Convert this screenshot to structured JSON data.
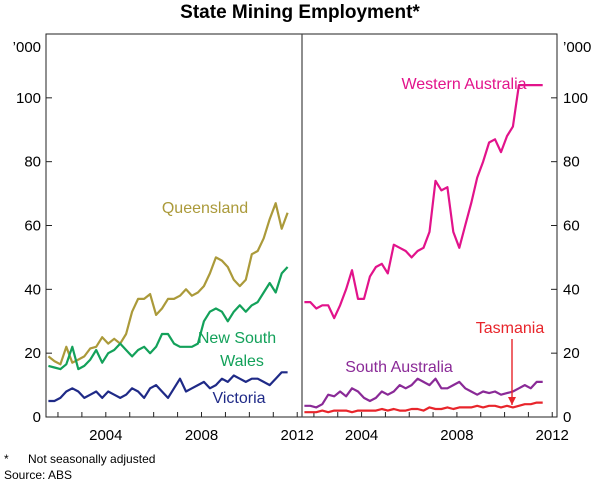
{
  "title": "State Mining Employment*",
  "footnote": {
    "marker": "*",
    "text": "Not seasonally adjusted"
  },
  "source": "Source: ABS",
  "chart_data": [
    {
      "type": "line",
      "panel": "left",
      "y_unit": "’000",
      "ylim": [
        0,
        120
      ],
      "yticks": [
        0,
        20,
        40,
        60,
        80,
        100
      ],
      "xlim": [
        2001.5,
        2012.2
      ],
      "xticks": [
        2004,
        2008,
        2012
      ],
      "grid": false,
      "series": [
        {
          "name": "Queensland",
          "label_lines": [
            "Queensland"
          ],
          "color": "#ab9a3a",
          "x": [
            2001.6,
            2001.85,
            2002.1,
            2002.35,
            2002.6,
            2002.85,
            2003.1,
            2003.35,
            2003.6,
            2003.85,
            2004.1,
            2004.35,
            2004.6,
            2004.85,
            2005.1,
            2005.35,
            2005.6,
            2005.85,
            2006.1,
            2006.35,
            2006.6,
            2006.85,
            2007.1,
            2007.35,
            2007.6,
            2007.85,
            2008.1,
            2008.35,
            2008.6,
            2008.85,
            2009.1,
            2009.35,
            2009.6,
            2009.85,
            2010.1,
            2010.35,
            2010.6,
            2010.85,
            2011.1,
            2011.35,
            2011.6
          ],
          "values": [
            19,
            17.5,
            16.5,
            22,
            17,
            18,
            19,
            21.5,
            22,
            25,
            23,
            24.5,
            23,
            26,
            33,
            37,
            37,
            38.5,
            32,
            34,
            37,
            37,
            38,
            40,
            38,
            39,
            41,
            45,
            50,
            49,
            47,
            43,
            41,
            43,
            51,
            52,
            56,
            62,
            67,
            59,
            64
          ]
        },
        {
          "name": "New South Wales",
          "label_lines": [
            "New South",
            "Wales"
          ],
          "color": "#13a15a",
          "x": [
            2001.6,
            2001.85,
            2002.1,
            2002.35,
            2002.6,
            2002.85,
            2003.1,
            2003.35,
            2003.6,
            2003.85,
            2004.1,
            2004.35,
            2004.6,
            2004.85,
            2005.1,
            2005.35,
            2005.6,
            2005.85,
            2006.1,
            2006.35,
            2006.6,
            2006.85,
            2007.1,
            2007.35,
            2007.6,
            2007.85,
            2008.1,
            2008.35,
            2008.6,
            2008.85,
            2009.1,
            2009.35,
            2009.6,
            2009.85,
            2010.1,
            2010.35,
            2010.6,
            2010.85,
            2011.1,
            2011.35,
            2011.6
          ],
          "values": [
            16,
            15.5,
            15,
            16.5,
            22,
            15,
            16,
            18,
            21,
            17,
            20,
            21,
            23,
            21,
            19,
            21,
            22,
            20,
            22,
            26,
            26,
            23,
            22,
            22,
            22,
            23,
            30,
            33,
            34,
            33,
            30,
            33,
            35,
            33,
            35,
            36,
            39,
            42,
            39,
            45,
            47
          ]
        },
        {
          "name": "Victoria",
          "label_lines": [
            "Victoria"
          ],
          "color": "#1f2a87",
          "x": [
            2001.6,
            2001.85,
            2002.1,
            2002.35,
            2002.6,
            2002.85,
            2003.1,
            2003.35,
            2003.6,
            2003.85,
            2004.1,
            2004.35,
            2004.6,
            2004.85,
            2005.1,
            2005.35,
            2005.6,
            2005.85,
            2006.1,
            2006.35,
            2006.6,
            2006.85,
            2007.1,
            2007.35,
            2007.6,
            2007.85,
            2008.1,
            2008.35,
            2008.6,
            2008.85,
            2009.1,
            2009.35,
            2009.6,
            2009.85,
            2010.1,
            2010.35,
            2010.6,
            2010.85,
            2011.1,
            2011.35,
            2011.6
          ],
          "values": [
            5,
            5,
            6,
            8,
            9,
            8,
            6,
            7,
            8,
            6,
            8,
            7,
            6,
            7,
            9,
            8,
            6,
            9,
            10,
            8,
            6,
            9,
            12,
            8,
            9,
            10,
            11,
            9,
            10,
            12,
            11,
            13,
            12,
            11,
            12,
            12,
            11,
            10,
            12,
            14,
            14
          ]
        }
      ]
    },
    {
      "type": "line",
      "panel": "right",
      "y_unit": "’000",
      "ylim": [
        0,
        120
      ],
      "yticks": [
        0,
        20,
        40,
        60,
        80,
        100
      ],
      "xlim": [
        2001.5,
        2012.2
      ],
      "xticks": [
        2004,
        2008,
        2012
      ],
      "grid": false,
      "series": [
        {
          "name": "Western Australia",
          "label_lines": [
            "Western Australia"
          ],
          "color": "#e2138b",
          "x": [
            2001.6,
            2001.85,
            2002.1,
            2002.35,
            2002.6,
            2002.85,
            2003.1,
            2003.35,
            2003.6,
            2003.85,
            2004.1,
            2004.35,
            2004.6,
            2004.85,
            2005.1,
            2005.35,
            2005.6,
            2005.85,
            2006.1,
            2006.35,
            2006.6,
            2006.85,
            2007.1,
            2007.35,
            2007.6,
            2007.85,
            2008.1,
            2008.35,
            2008.6,
            2008.85,
            2009.1,
            2009.35,
            2009.6,
            2009.85,
            2010.1,
            2010.35,
            2010.6,
            2010.85,
            2011.1,
            2011.35,
            2011.6
          ],
          "values": [
            36,
            36,
            34,
            35,
            35,
            31,
            35,
            40,
            46,
            37,
            37,
            44,
            47,
            48,
            45,
            54,
            53,
            52,
            50,
            52,
            53,
            58,
            74,
            71,
            72,
            58,
            53,
            60,
            67,
            75,
            80,
            86,
            87,
            83,
            88,
            91,
            104,
            104,
            104,
            104,
            104
          ]
        },
        {
          "name": "South Australia",
          "label_lines": [
            "South Australia"
          ],
          "color": "#8a2a97",
          "x": [
            2001.6,
            2001.85,
            2002.1,
            2002.35,
            2002.6,
            2002.85,
            2003.1,
            2003.35,
            2003.6,
            2003.85,
            2004.1,
            2004.35,
            2004.6,
            2004.85,
            2005.1,
            2005.35,
            2005.6,
            2005.85,
            2006.1,
            2006.35,
            2006.6,
            2006.85,
            2007.1,
            2007.35,
            2007.6,
            2007.85,
            2008.1,
            2008.35,
            2008.6,
            2008.85,
            2009.1,
            2009.35,
            2009.6,
            2009.85,
            2010.1,
            2010.35,
            2010.6,
            2010.85,
            2011.1,
            2011.35,
            2011.6
          ],
          "values": [
            3.5,
            3.5,
            3,
            4,
            7,
            6.5,
            8,
            6.5,
            9,
            8,
            6,
            5,
            6,
            8,
            7,
            8,
            10,
            9,
            10,
            12,
            11,
            10,
            12,
            9,
            9,
            10,
            11,
            9,
            8,
            7,
            8,
            7.5,
            8,
            7,
            7.5,
            8,
            9,
            10,
            9,
            11,
            11
          ]
        },
        {
          "name": "Tasmania",
          "label_lines": [
            "Tasmania"
          ],
          "color": "#e8252b",
          "x": [
            2001.6,
            2001.85,
            2002.1,
            2002.35,
            2002.6,
            2002.85,
            2003.1,
            2003.35,
            2003.6,
            2003.85,
            2004.1,
            2004.35,
            2004.6,
            2004.85,
            2005.1,
            2005.35,
            2005.6,
            2005.85,
            2006.1,
            2006.35,
            2006.6,
            2006.85,
            2007.1,
            2007.35,
            2007.6,
            2007.85,
            2008.1,
            2008.35,
            2008.6,
            2008.85,
            2009.1,
            2009.35,
            2009.6,
            2009.85,
            2010.1,
            2010.35,
            2010.6,
            2010.85,
            2011.1,
            2011.35,
            2011.6
          ],
          "values": [
            1.5,
            1.5,
            1.5,
            2,
            1.5,
            2,
            2,
            2,
            1.5,
            2,
            2,
            2,
            2,
            2.5,
            2,
            2.5,
            2,
            2,
            2.5,
            2.5,
            2,
            3,
            2.5,
            2.5,
            3,
            2.5,
            3,
            3,
            3,
            3.5,
            3,
            3.5,
            3.5,
            3,
            3.5,
            3,
            3.5,
            4,
            4,
            4.5,
            4.5
          ]
        }
      ]
    }
  ]
}
